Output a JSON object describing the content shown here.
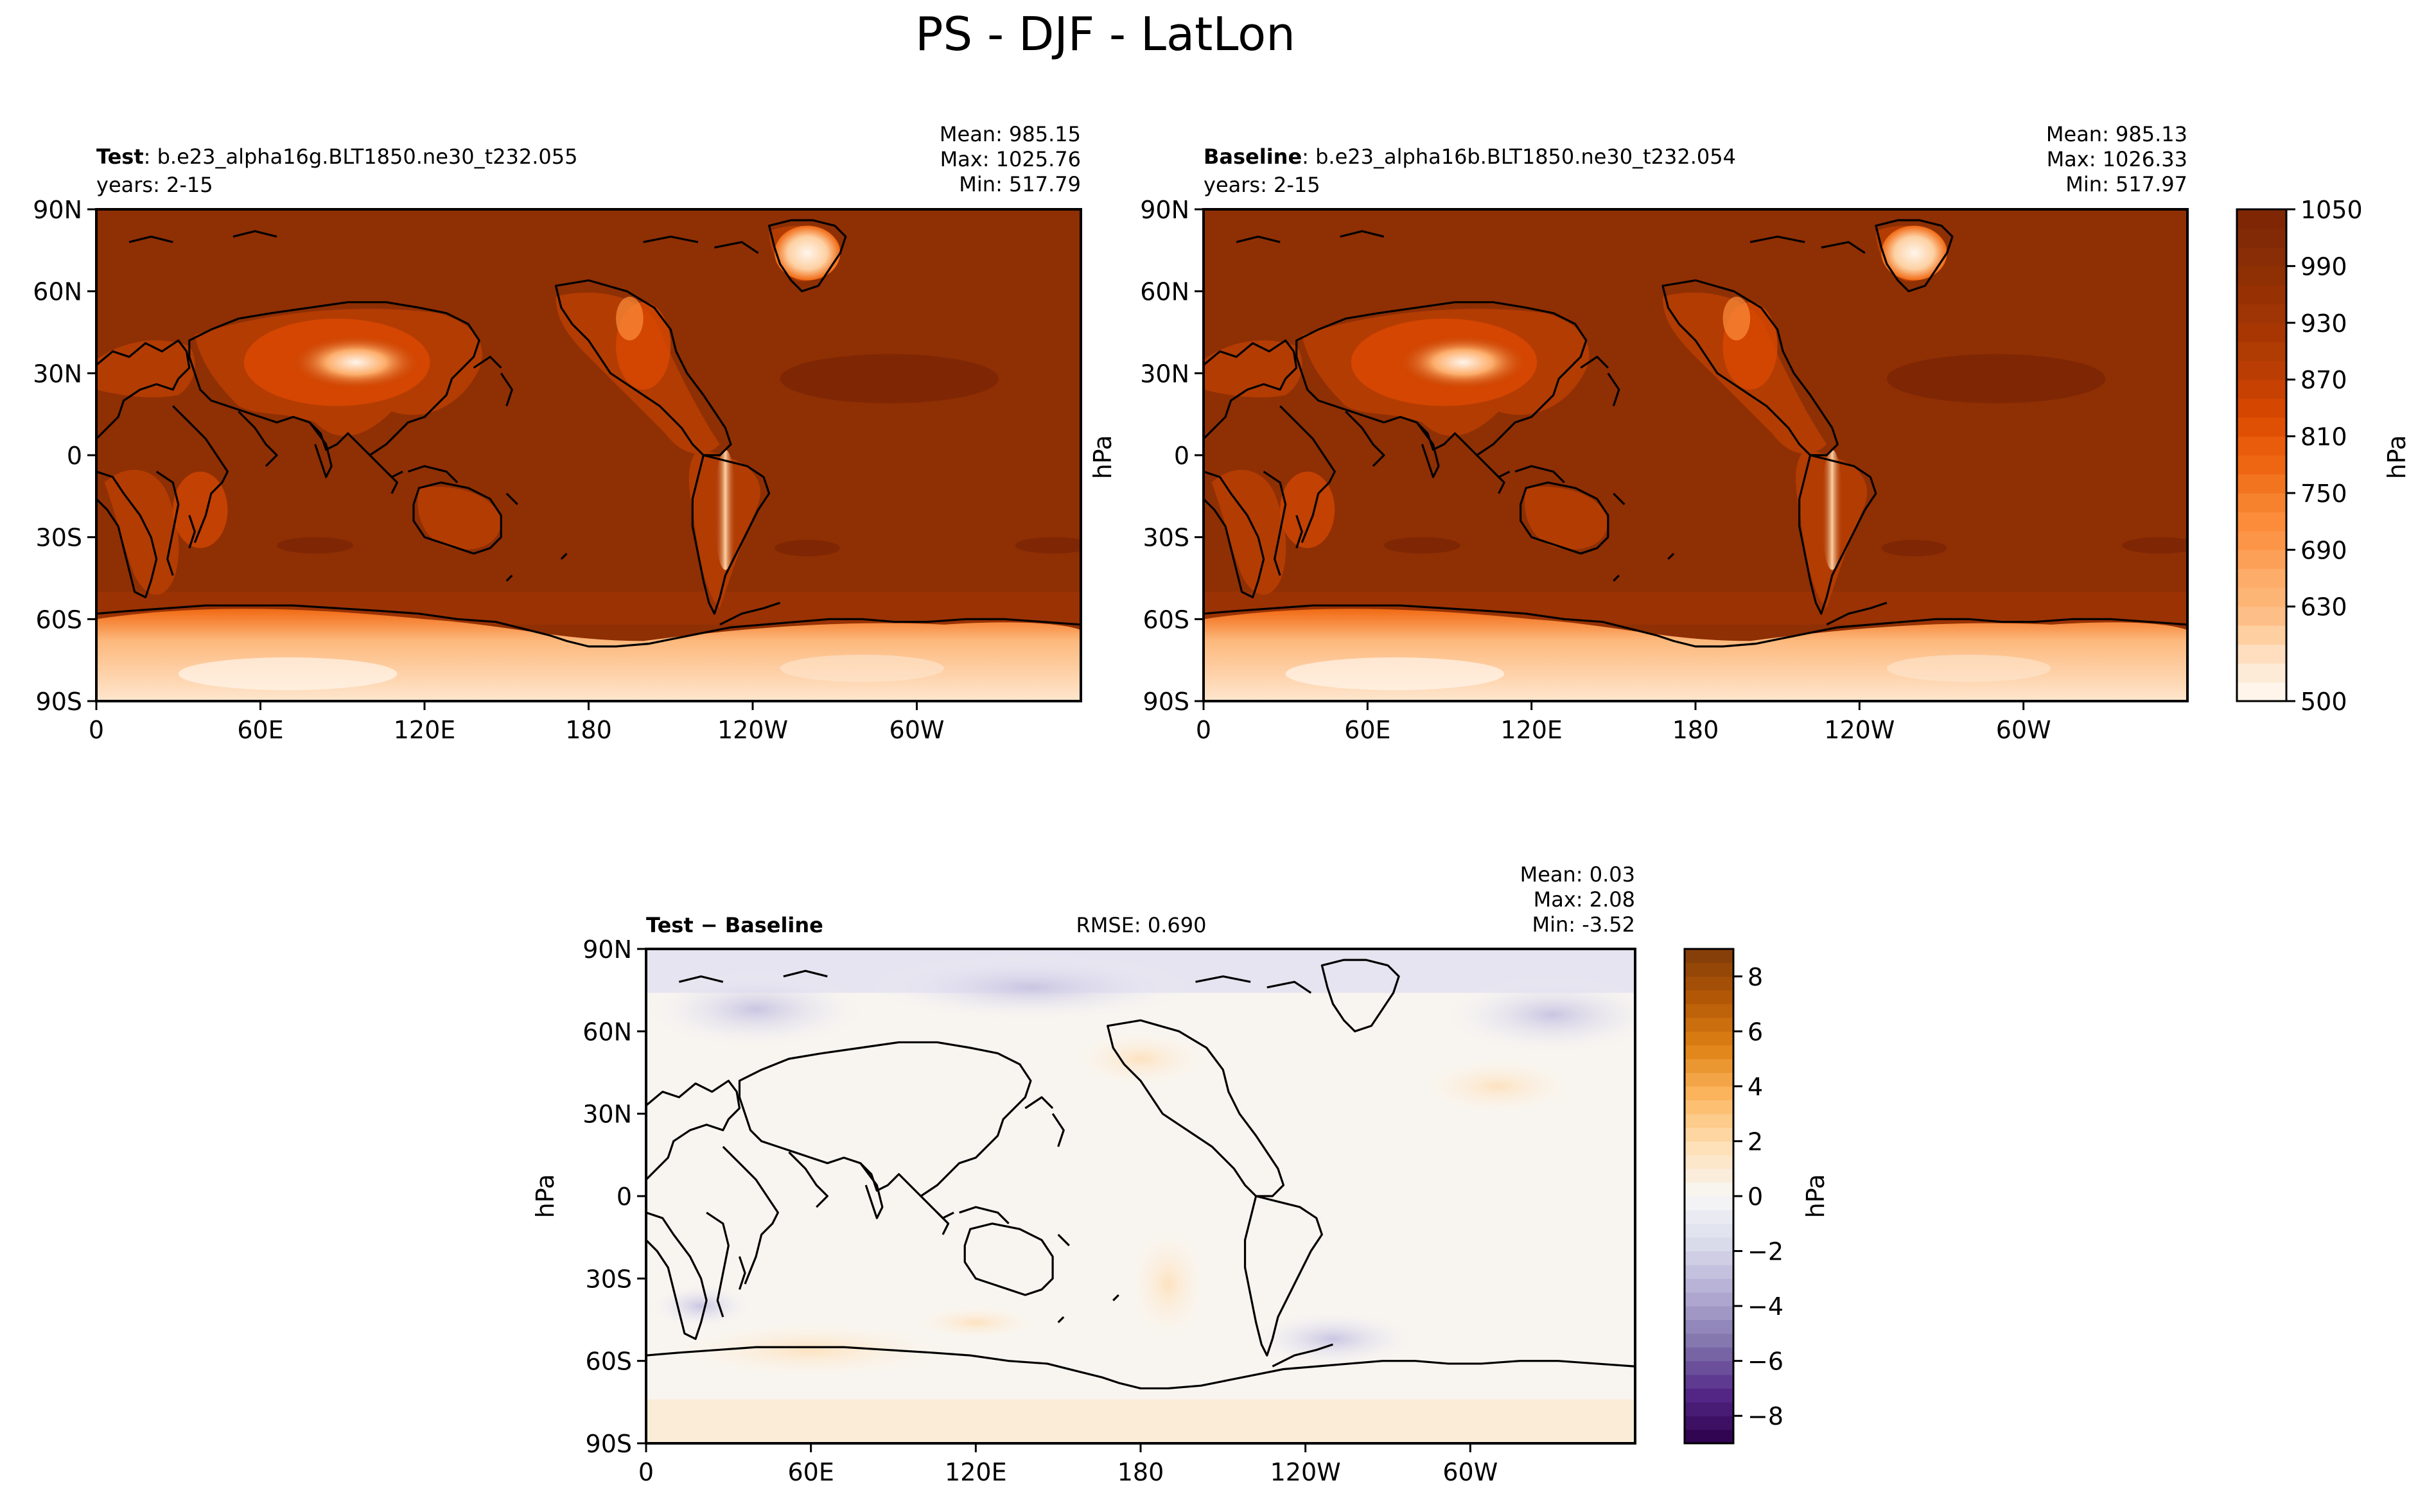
{
  "figure": {
    "title": "PS - DJF - LatLon"
  },
  "panels": {
    "test": {
      "label_bold": "Test",
      "label_rest": ": b.e23_alpha16g.BLT1850.ne30_t232.055",
      "years": "years: 2-15",
      "stats": [
        "Mean: 985.15",
        "Max: 1025.76",
        "Min: 517.79"
      ]
    },
    "baseline": {
      "label_bold": "Baseline",
      "label_rest": ": b.e23_alpha16b.BLT1850.ne30_t232.054",
      "years": "years: 2-15",
      "units": "hPa",
      "stats": [
        "Mean: 985.13",
        "Max: 1026.33",
        "Min: 517.97"
      ]
    },
    "diff": {
      "label": "Test − Baseline",
      "rmse": "RMSE: 0.690",
      "units": "hPa",
      "stats": [
        "Mean:  0.03",
        "Max:  2.08",
        "Min: -3.52"
      ]
    }
  },
  "axes": {
    "lat_ticks": [
      "90N",
      "60N",
      "30N",
      "0",
      "30S",
      "60S",
      "90S"
    ],
    "lon_ticks": [
      "0",
      "60E",
      "120E",
      "180",
      "120W",
      "60W"
    ]
  },
  "colorbars": {
    "main": {
      "units": "hPa",
      "levels": [
        500,
        530,
        560,
        590,
        610,
        630,
        650,
        670,
        690,
        710,
        730,
        750,
        770,
        790,
        810,
        830,
        850,
        870,
        890,
        910,
        930,
        950,
        970,
        990,
        1010,
        1030,
        1050
      ],
      "tick_labels": [
        "1050",
        "990",
        "930",
        "870",
        "810",
        "750",
        "690",
        "630",
        "500"
      ],
      "tick_values": [
        1050,
        990,
        930,
        870,
        810,
        750,
        690,
        630,
        500
      ],
      "colors": [
        "#fff5eb",
        "#fee6ce",
        "#fdd0a2",
        "#fdb97d",
        "#fdae6b",
        "#fd9c51",
        "#fd8d3c",
        "#f57f2a",
        "#f16913",
        "#e6590a",
        "#d94801",
        "#c44003",
        "#b33c03",
        "#a63603",
        "#9a3204",
        "#8f2f04",
        "#842c05",
        "#7f2704"
      ]
    },
    "diff": {
      "units": "hPa",
      "range": [
        -9,
        9
      ],
      "tick_labels": [
        "8",
        "6",
        "4",
        "2",
        "0",
        "−2",
        "−4",
        "−6",
        "−8"
      ],
      "tick_values": [
        8,
        6,
        4,
        2,
        0,
        -2,
        -4,
        -6,
        -8
      ],
      "colors": [
        "#2d004b",
        "#542788",
        "#8073ac",
        "#b2abd2",
        "#d8daeb",
        "#f7f7f7",
        "#fee0b6",
        "#fdb863",
        "#e08214",
        "#b35806",
        "#7f3b08"
      ]
    }
  },
  "chart_data": [
    {
      "type": "heatmap",
      "name": "test",
      "stats": {
        "mean": 985.15,
        "max": 1025.76,
        "min": 517.79
      },
      "xlim": [
        0,
        360
      ],
      "ylim": [
        -90,
        90
      ],
      "units": "hPa"
    },
    {
      "type": "heatmap",
      "name": "baseline",
      "stats": {
        "mean": 985.13,
        "max": 1026.33,
        "min": 517.97
      },
      "xlim": [
        0,
        360
      ],
      "ylim": [
        -90,
        90
      ],
      "units": "hPa"
    },
    {
      "type": "heatmap",
      "name": "test-baseline",
      "stats": {
        "mean": 0.03,
        "max": 2.08,
        "min": -3.52,
        "rmse": 0.69
      },
      "xlim": [
        0,
        360
      ],
      "ylim": [
        -90,
        90
      ],
      "units": "hPa",
      "colorbar_range": [
        -9,
        9
      ]
    }
  ]
}
